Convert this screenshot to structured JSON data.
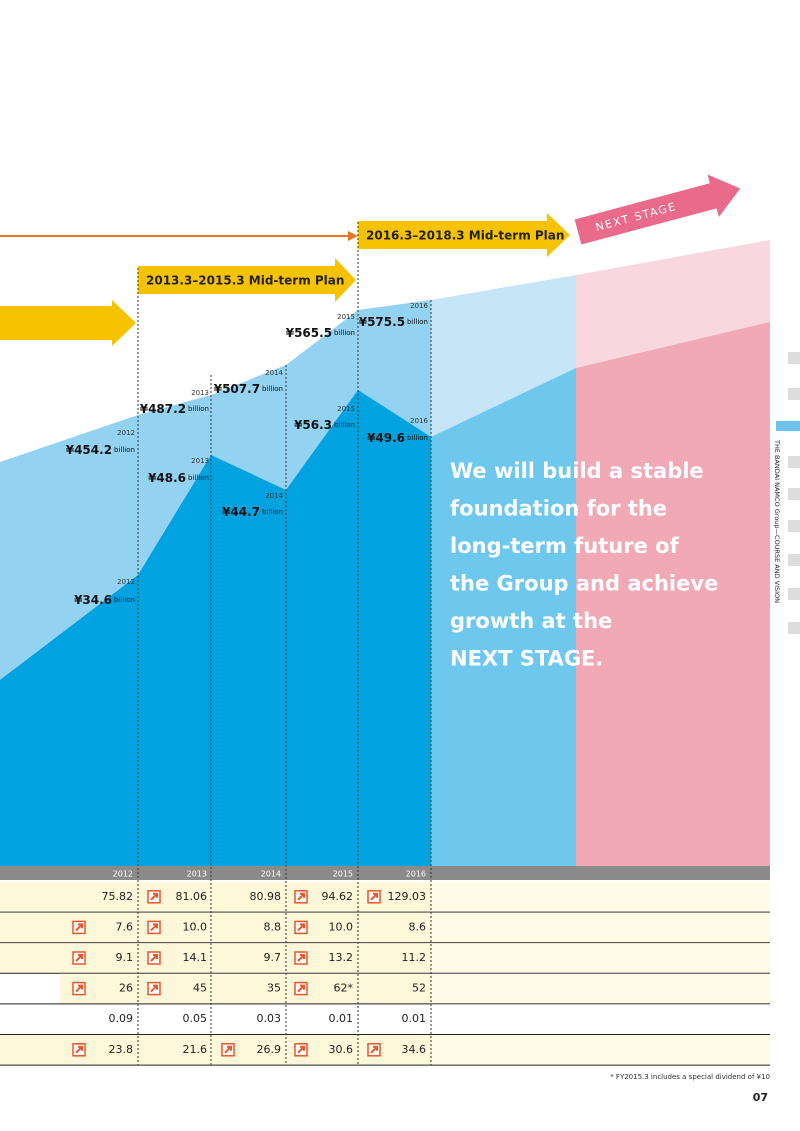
{
  "plans": {
    "prior_bar": "",
    "mid_term_1": "2013.3–2015.3 Mid-term Plan",
    "mid_term_2": "2016.3–2018.3 Mid-term Plan",
    "next_stage": "NEXT STAGE"
  },
  "sales_labels": [
    {
      "year": "2012",
      "value": "¥454.2",
      "unit": "billion"
    },
    {
      "year": "2013",
      "value": "¥487.2",
      "unit": "billion"
    },
    {
      "year": "2014",
      "value": "¥507.7",
      "unit": "billion"
    },
    {
      "year": "2015",
      "value": "¥565.5",
      "unit": "billion"
    },
    {
      "year": "2016",
      "value": "¥575.5",
      "unit": "billion"
    }
  ],
  "income_labels": [
    {
      "year": "2012",
      "value": "¥34.6",
      "unit": "billion"
    },
    {
      "year": "2013",
      "value": "¥48.6",
      "unit": "billion"
    },
    {
      "year": "2014",
      "value": "¥44.7",
      "unit": "billion"
    },
    {
      "year": "2015",
      "value": "¥56.3",
      "unit": "billion"
    },
    {
      "year": "2016",
      "value": "¥49.6",
      "unit": "billion"
    }
  ],
  "message": [
    "We will build a stable",
    "foundation for the",
    "long-term future of",
    "the Group and achieve",
    "growth at the",
    "NEXT STAGE."
  ],
  "side_title": "THE BANDAI NAMCO Group—COURSE AND VISION",
  "table": {
    "header": [
      "2012",
      "2013",
      "2014",
      "2015",
      "2016"
    ],
    "rows": [
      [
        {
          "value": "75.82",
          "up": false
        },
        {
          "value": "81.06",
          "up": true
        },
        {
          "value": "80.98",
          "up": false
        },
        {
          "value": "94.62",
          "up": true
        },
        {
          "value": "129.03",
          "up": true
        }
      ],
      [
        {
          "value": "7.6",
          "up": true
        },
        {
          "value": "10.0",
          "up": true
        },
        {
          "value": "8.8",
          "up": false
        },
        {
          "value": "10.0",
          "up": true
        },
        {
          "value": "8.6",
          "up": false
        }
      ],
      [
        {
          "value": "9.1",
          "up": true
        },
        {
          "value": "14.1",
          "up": true
        },
        {
          "value": "9.7",
          "up": false
        },
        {
          "value": "13.2",
          "up": true
        },
        {
          "value": "11.2",
          "up": false
        }
      ],
      [
        {
          "value": "26",
          "up": true
        },
        {
          "value": "45",
          "up": true
        },
        {
          "value": "35",
          "up": false
        },
        {
          "value": "62*",
          "up": true
        },
        {
          "value": "52",
          "up": false
        }
      ],
      [
        {
          "value": "0.09",
          "up": false
        },
        {
          "value": "0.05",
          "up": false
        },
        {
          "value": "0.03",
          "up": false
        },
        {
          "value": "0.01",
          "up": false
        },
        {
          "value": "0.01",
          "up": false
        }
      ],
      [
        {
          "value": "23.8",
          "up": true
        },
        {
          "value": "21.6",
          "up": false
        },
        {
          "value": "26.9",
          "up": true
        },
        {
          "value": "30.6",
          "up": true
        },
        {
          "value": "34.6",
          "up": true
        }
      ]
    ]
  },
  "footnote": "* FY2015.3 includes a special dividend of ¥10",
  "page_number": "07"
}
